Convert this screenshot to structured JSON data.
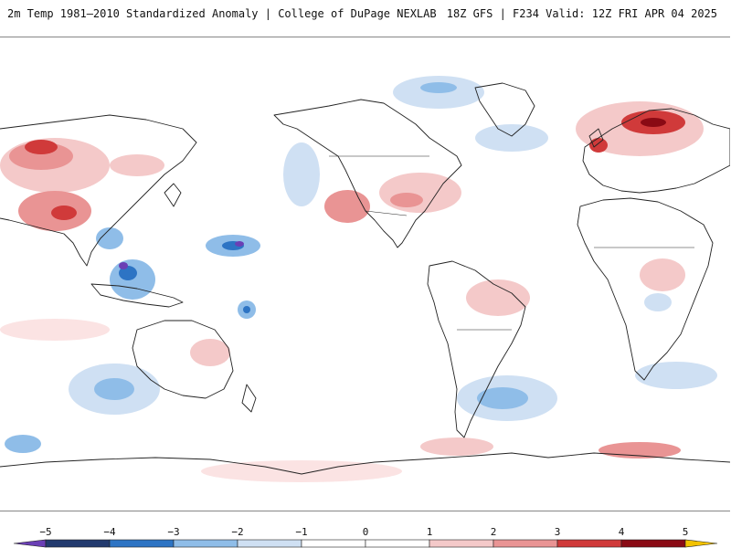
{
  "header": {
    "left_title": "2m Temp 1981–2010 Standardized Anomaly | College of DuPage NEXLAB",
    "right_title": "18Z GFS | F234 Valid: 12Z FRI APR 04 2025"
  },
  "colorbar": {
    "ticks": [
      "−5",
      "−4",
      "−3",
      "−2",
      "−1",
      "0",
      "1",
      "2",
      "3",
      "4",
      "5"
    ],
    "tick_values": [
      -5,
      -4,
      -3,
      -2,
      -1,
      0,
      1,
      2,
      3,
      4,
      5
    ],
    "colors": [
      "#6a3fb5",
      "#223a6e",
      "#2d74c4",
      "#8fbde8",
      "#cfe0f3",
      "#ffffff",
      "#ffffff",
      "#f4c9c9",
      "#e99494",
      "#d03a3a",
      "#8a0a14",
      "#f2c200"
    ],
    "min": -5.5,
    "max": 5.5
  },
  "map": {
    "ocean_color": "#ffffff",
    "coastline_color": "#222222"
  }
}
